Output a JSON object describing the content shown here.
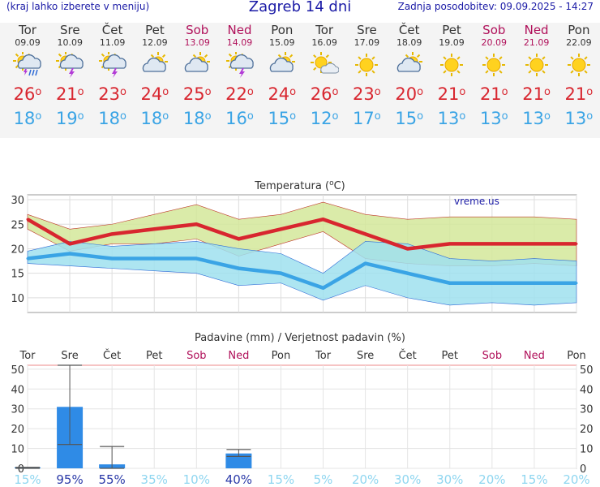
{
  "header": {
    "left_note": "(kraj lahko izberete v meniju)",
    "title": "Zagreb 14 dni",
    "updated": "Zadnja posodobitev: 09.09.2025 - 14:27"
  },
  "days": [
    {
      "name": "Tor",
      "date": "09.09",
      "icon": "thunder-rain-sun-icon",
      "max": "26",
      "min": "18",
      "weekend": false
    },
    {
      "name": "Sre",
      "date": "10.09",
      "icon": "thunder-sun-icon",
      "max": "21",
      "min": "19",
      "weekend": false
    },
    {
      "name": "Čet",
      "date": "11.09",
      "icon": "thunder-sun-icon",
      "max": "23",
      "min": "18",
      "weekend": false
    },
    {
      "name": "Pet",
      "date": "12.09",
      "icon": "partly-cloudy-icon",
      "max": "24",
      "min": "18",
      "weekend": false
    },
    {
      "name": "Sob",
      "date": "13.09",
      "icon": "partly-cloudy-icon",
      "max": "25",
      "min": "18",
      "weekend": true
    },
    {
      "name": "Ned",
      "date": "14.09",
      "icon": "thunder-sun-icon",
      "max": "22",
      "min": "16",
      "weekend": true
    },
    {
      "name": "Pon",
      "date": "15.09",
      "icon": "partly-cloudy-icon",
      "max": "24",
      "min": "15",
      "weekend": false
    },
    {
      "name": "Tor",
      "date": "16.09",
      "icon": "sun-cloud-icon",
      "max": "26",
      "min": "12",
      "weekend": false
    },
    {
      "name": "Sre",
      "date": "17.09",
      "icon": "sun-icon",
      "max": "23",
      "min": "17",
      "weekend": false
    },
    {
      "name": "Čet",
      "date": "18.09",
      "icon": "partly-cloudy-icon",
      "max": "20",
      "min": "15",
      "weekend": false
    },
    {
      "name": "Pet",
      "date": "19.09",
      "icon": "sun-icon",
      "max": "21",
      "min": "13",
      "weekend": false
    },
    {
      "name": "Sob",
      "date": "20.09",
      "icon": "sun-icon",
      "max": "21",
      "min": "13",
      "weekend": true
    },
    {
      "name": "Ned",
      "date": "21.09",
      "icon": "sun-icon",
      "max": "21",
      "min": "13",
      "weekend": true
    },
    {
      "name": "Pon",
      "date": "22.09",
      "icon": "sun-icon",
      "max": "21",
      "min": "13",
      "weekend": false
    }
  ],
  "degree_symbol": "o",
  "colors": {
    "max": "#d8262f",
    "min": "#3aa4e5",
    "weekend": "#b0105a",
    "bar": "#2f8be6",
    "title": "#1a1aa6"
  },
  "chart_data": [
    {
      "type": "line",
      "title": "Temperatura (oC)",
      "watermark": "vreme.us",
      "ylim": [
        7,
        31
      ],
      "yticks": [
        "10",
        "15",
        "20",
        "25",
        "30"
      ],
      "x": [
        0,
        1,
        2,
        3,
        4,
        5,
        6,
        7,
        8,
        9,
        10,
        11,
        12,
        13
      ],
      "series": [
        {
          "values": [
            26,
            21,
            23,
            24,
            25,
            22,
            24,
            26,
            23,
            20,
            21,
            21,
            21,
            21
          ],
          "color": "#d8262f"
        },
        {
          "values": [
            18,
            19,
            18,
            18,
            18,
            16,
            15,
            12,
            17,
            15,
            13,
            13,
            13,
            13
          ],
          "color": "#3aa4e5"
        }
      ],
      "bands": [
        {
          "upper": [
            27,
            24,
            25,
            27,
            29,
            26,
            27,
            29.5,
            27,
            26,
            26.5,
            26.5,
            26.5,
            26
          ],
          "lower": [
            24,
            19.5,
            21,
            21,
            22,
            18.5,
            21,
            23.5,
            18,
            17,
            16.5,
            16.5,
            17,
            16.5
          ],
          "color": "#d3e89a"
        },
        {
          "upper": [
            19.5,
            21.5,
            20.5,
            21,
            21.5,
            20,
            19,
            15,
            21.5,
            21,
            18,
            17.5,
            18,
            17.5
          ],
          "lower": [
            17,
            16.5,
            16,
            15.5,
            15,
            12.5,
            13,
            9.5,
            12.5,
            10,
            8.5,
            9,
            8.5,
            9
          ],
          "color": "#9fe0ee"
        }
      ],
      "grid": true
    },
    {
      "type": "bar",
      "title": "Padavine (mm) / Verjetnost padavin (%)",
      "categories": [
        "Tor",
        "Sre",
        "Čet",
        "Pet",
        "Sob",
        "Ned",
        "Pon",
        "Tor",
        "Sre",
        "Čet",
        "Pet",
        "Sob",
        "Ned",
        "Pon"
      ],
      "weekend": [
        false,
        false,
        false,
        false,
        true,
        true,
        false,
        false,
        false,
        false,
        false,
        true,
        true,
        false
      ],
      "values": [
        0.5,
        31,
        2,
        0,
        0,
        7.5,
        0,
        0,
        0,
        0,
        0,
        0,
        0,
        0
      ],
      "range_low": [
        0,
        12,
        0,
        0,
        0,
        6,
        0,
        0,
        0,
        0,
        0,
        0,
        0,
        0
      ],
      "range_high": [
        0.5,
        52,
        11,
        0,
        0,
        9.5,
        0,
        0,
        0,
        0,
        0,
        0,
        0,
        0
      ],
      "probability": [
        "15%",
        "95%",
        "55%",
        "35%",
        "10%",
        "40%",
        "15%",
        "5%",
        "20%",
        "30%",
        "30%",
        "20%",
        "15%",
        "20%"
      ],
      "ylim": [
        0,
        52
      ],
      "yticks": [
        "0",
        "10",
        "20",
        "30",
        "40",
        "50"
      ],
      "grid": true
    }
  ]
}
